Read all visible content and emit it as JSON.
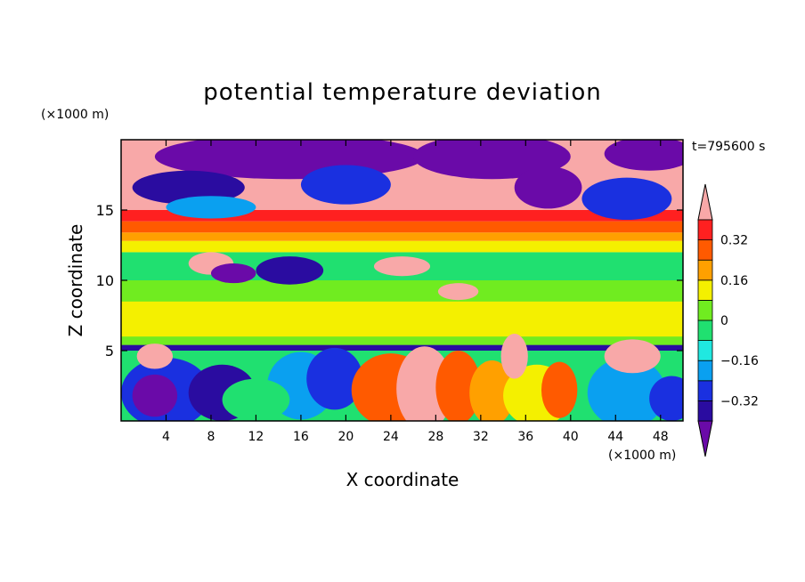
{
  "chart_data": {
    "type": "heatmap",
    "title": "potential temperature deviation",
    "xlabel": "X coordinate",
    "ylabel": "Z coordinate",
    "x_unit": "(×1000 m)",
    "y_unit": "(×1000 m)",
    "time_label": "t=795600 s",
    "xlim": [
      0,
      50
    ],
    "ylim": [
      0,
      20
    ],
    "x_ticks": [
      4,
      8,
      12,
      16,
      20,
      24,
      28,
      32,
      36,
      40,
      44,
      48
    ],
    "y_ticks": [
      5,
      10,
      15
    ],
    "colorbar": {
      "levels": [
        -0.4,
        -0.32,
        -0.24,
        -0.16,
        -0.08,
        0,
        0.08,
        0.16,
        0.24,
        0.32,
        0.4
      ],
      "tick_labels": [
        {
          "value": 0.32,
          "label": "0.32"
        },
        {
          "value": 0.16,
          "label": "0.16"
        },
        {
          "value": 0,
          "label": "0"
        },
        {
          "value": -0.16,
          "label": "−0.16"
        },
        {
          "value": -0.32,
          "label": "−0.32"
        }
      ],
      "colors": [
        "#6a0aa8",
        "#2a0ca0",
        "#1a30e0",
        "#0aa0f0",
        "#20e8e0",
        "#20e070",
        "#70ec20",
        "#f4f000",
        "#ffa000",
        "#ff5a00",
        "#ff2020",
        "#f8a8a8"
      ]
    },
    "grid": false,
    "legend": "colorbar-right"
  }
}
